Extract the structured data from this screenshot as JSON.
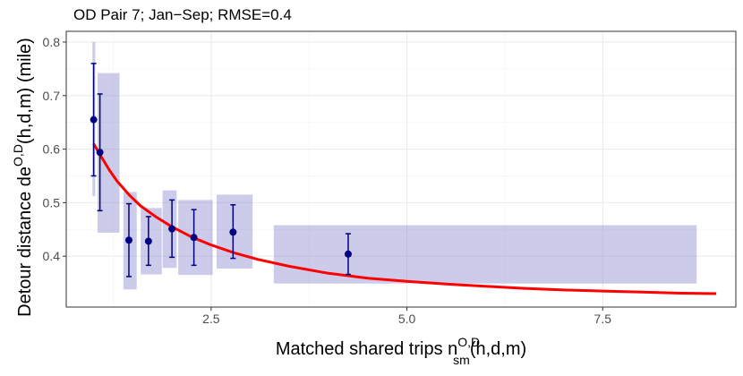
{
  "chart_data": {
    "type": "scatter",
    "title": "OD Pair 7; Jan−Sep; RMSE=0.4",
    "xlabel": {
      "prefix": "Matched shared trips n",
      "sup": "O,D",
      "sub": "sm",
      "suffix": "(h,d,m)"
    },
    "ylabel": {
      "prefix": "Detour distance de",
      "sup": "O,D",
      "suffix": "(h,d,m) (mile)"
    },
    "xlim": [
      0.65,
      9.2
    ],
    "ylim": [
      0.305,
      0.82
    ],
    "x_ticks": [
      2.5,
      5.0,
      7.5
    ],
    "x_tick_labels": [
      "2.5",
      "5.0",
      "7.5"
    ],
    "y_ticks": [
      0.4,
      0.5,
      0.6,
      0.7,
      0.8
    ],
    "y_tick_labels": [
      "0.4",
      "0.5",
      "0.6",
      "0.7",
      "0.8"
    ],
    "grid": true,
    "points": [
      {
        "x": 1.0,
        "y": 0.655,
        "lo": 0.55,
        "hi": 0.76
      },
      {
        "x": 1.08,
        "y": 0.594,
        "lo": 0.485,
        "hi": 0.703
      },
      {
        "x": 1.45,
        "y": 0.43,
        "lo": 0.362,
        "hi": 0.498
      },
      {
        "x": 1.7,
        "y": 0.428,
        "lo": 0.383,
        "hi": 0.474
      },
      {
        "x": 2.0,
        "y": 0.451,
        "lo": 0.398,
        "hi": 0.505
      },
      {
        "x": 2.28,
        "y": 0.435,
        "lo": 0.383,
        "hi": 0.487
      },
      {
        "x": 2.78,
        "y": 0.445,
        "lo": 0.396,
        "hi": 0.496
      },
      {
        "x": 4.25,
        "y": 0.404,
        "lo": 0.366,
        "hi": 0.442
      }
    ],
    "bands": [
      {
        "x0": 0.985,
        "x1": 1.02,
        "y0": 0.512,
        "y1": 0.8
      },
      {
        "x0": 1.05,
        "x1": 1.33,
        "y0": 0.444,
        "y1": 0.742
      },
      {
        "x0": 1.38,
        "x1": 1.55,
        "y0": 0.338,
        "y1": 0.52
      },
      {
        "x0": 1.6,
        "x1": 1.87,
        "y0": 0.366,
        "y1": 0.49
      },
      {
        "x0": 1.88,
        "x1": 2.06,
        "y0": 0.378,
        "y1": 0.523
      },
      {
        "x0": 2.08,
        "x1": 2.52,
        "y0": 0.365,
        "y1": 0.505
      },
      {
        "x0": 2.57,
        "x1": 3.03,
        "y0": 0.377,
        "y1": 0.515
      },
      {
        "x0": 3.3,
        "x1": 8.7,
        "y0": 0.349,
        "y1": 0.458
      }
    ],
    "fit_curve": {
      "name": "fit",
      "x": [
        1.0,
        1.1,
        1.2,
        1.3,
        1.45,
        1.6,
        1.8,
        2.0,
        2.25,
        2.5,
        2.8,
        3.1,
        3.5,
        4.0,
        4.5,
        5.0,
        5.5,
        6.0,
        6.5,
        7.0,
        7.5,
        8.0,
        8.5,
        8.95
      ],
      "y": [
        0.61,
        0.585,
        0.561,
        0.54,
        0.515,
        0.494,
        0.473,
        0.455,
        0.436,
        0.421,
        0.406,
        0.394,
        0.381,
        0.368,
        0.359,
        0.353,
        0.348,
        0.344,
        0.34,
        0.337,
        0.335,
        0.333,
        0.331,
        0.33
      ]
    },
    "colors": {
      "band": "#8d8fd0",
      "point": "#000080",
      "curve": "#ff0000",
      "grid_major": "#ebebeb",
      "grid_minor": "#f5f5f5",
      "panel_border": "#333333"
    }
  }
}
